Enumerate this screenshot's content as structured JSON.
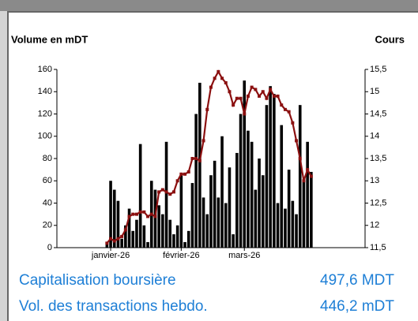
{
  "chart_data": {
    "type": "bar",
    "y_label": "Volume en mDT",
    "y2_label": "Cours",
    "categories": [
      null,
      "janvier-26",
      null,
      null,
      null,
      null,
      null,
      null,
      null,
      null,
      null,
      null,
      null,
      null,
      null,
      null,
      null,
      null,
      null,
      null,
      "février-26",
      null,
      null,
      null,
      null,
      null,
      null,
      null,
      null,
      null,
      null,
      null,
      null,
      null,
      null,
      null,
      null,
      "mars-26",
      null,
      null,
      null,
      null,
      null,
      null,
      null,
      null,
      null,
      null,
      null,
      null,
      null,
      null,
      null,
      null,
      null,
      null
    ],
    "series": [
      {
        "type": "bar",
        "color": "#000000",
        "values": [
          5,
          60,
          52,
          42,
          8,
          20,
          35,
          15,
          25,
          93,
          20,
          5,
          60,
          52,
          38,
          30,
          95,
          25,
          12,
          20,
          65,
          5,
          15,
          58,
          120,
          148,
          45,
          30,
          65,
          78,
          45,
          100,
          40,
          72,
          12,
          85,
          120,
          150,
          105,
          95,
          52,
          80,
          65,
          128,
          145,
          138,
          40,
          110,
          35,
          70,
          42,
          30,
          128,
          60,
          95,
          68
        ]
      },
      {
        "type": "line",
        "axis": "y2",
        "color": "#8b1010",
        "values": [
          11.6,
          11.7,
          11.65,
          11.7,
          11.75,
          11.9,
          12.2,
          12.25,
          12.25,
          12.3,
          12.3,
          12.2,
          12.25,
          12.2,
          12.75,
          12.8,
          12.75,
          12.7,
          12.75,
          13.0,
          13.15,
          13.15,
          13.2,
          13.5,
          13.5,
          13.45,
          13.9,
          14.6,
          15.1,
          15.3,
          15.45,
          15.3,
          15.2,
          15.0,
          14.7,
          14.85,
          14.85,
          14.5,
          14.9,
          15.1,
          15.05,
          14.9,
          15.0,
          14.85,
          15.05,
          14.9,
          14.9,
          14.7,
          14.6,
          14.55,
          14.3,
          13.9,
          13.5,
          13.0,
          13.25,
          13.1
        ]
      }
    ],
    "ylim": [
      0,
      160
    ],
    "yticks": [
      0,
      20,
      40,
      60,
      80,
      100,
      120,
      140,
      160
    ],
    "y2lim": [
      11.5,
      15.5
    ],
    "y2ticks": [
      {
        "value": 11.5,
        "label": "11,5"
      },
      12,
      {
        "value": 12.5,
        "label": "12,5"
      },
      13,
      {
        "value": 13.5,
        "label": "13,5"
      },
      14,
      {
        "value": 14.5,
        "label": "14,5"
      },
      15,
      {
        "value": 15.5,
        "label": "15,5"
      }
    ]
  },
  "stats": [
    {
      "label": "Capitalisation boursière",
      "value": "497,6 MDT"
    },
    {
      "label": "Vol. des transactions hebdo.",
      "value": "446,2 mDT"
    }
  ]
}
